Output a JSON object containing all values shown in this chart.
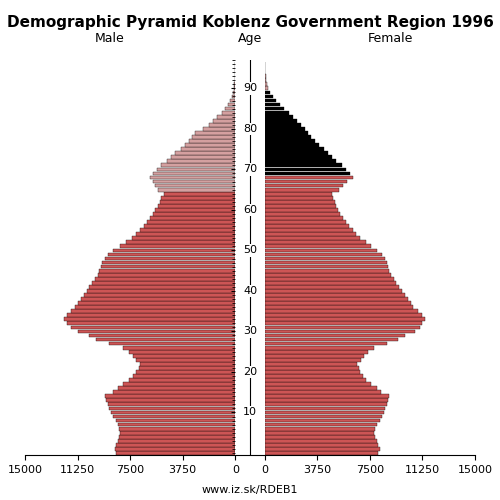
{
  "title": "Demographic Pyramid Koblenz Government Region 1996",
  "label_male": "Male",
  "label_female": "Female",
  "label_age": "Age",
  "source": "www.iz.sk/RDEB1",
  "xlim": 15000,
  "ages": [
    0,
    1,
    2,
    3,
    4,
    5,
    6,
    7,
    8,
    9,
    10,
    11,
    12,
    13,
    14,
    15,
    16,
    17,
    18,
    19,
    20,
    21,
    22,
    23,
    24,
    25,
    26,
    27,
    28,
    29,
    30,
    31,
    32,
    33,
    34,
    35,
    36,
    37,
    38,
    39,
    40,
    41,
    42,
    43,
    44,
    45,
    46,
    47,
    48,
    49,
    50,
    51,
    52,
    53,
    54,
    55,
    56,
    57,
    58,
    59,
    60,
    61,
    62,
    63,
    64,
    65,
    66,
    67,
    68,
    69,
    70,
    71,
    72,
    73,
    74,
    75,
    76,
    77,
    78,
    79,
    80,
    81,
    82,
    83,
    84,
    85,
    86,
    87,
    88,
    89,
    90,
    91,
    92,
    93,
    94,
    95,
    96
  ],
  "male": [
    8500,
    8600,
    8500,
    8400,
    8300,
    8200,
    8300,
    8400,
    8500,
    8700,
    8900,
    9000,
    9100,
    9200,
    9300,
    8700,
    8400,
    8000,
    7600,
    7300,
    7100,
    6900,
    6800,
    7100,
    7300,
    7600,
    8000,
    9000,
    9900,
    10400,
    11200,
    11700,
    12000,
    12200,
    12000,
    11700,
    11400,
    11200,
    11000,
    10800,
    10600,
    10400,
    10200,
    10000,
    9800,
    9700,
    9600,
    9500,
    9300,
    9100,
    8700,
    8200,
    7800,
    7400,
    7100,
    6800,
    6500,
    6300,
    6100,
    5900,
    5700,
    5500,
    5400,
    5300,
    5100,
    5500,
    5700,
    5900,
    6100,
    5900,
    5600,
    5300,
    4900,
    4600,
    4300,
    3900,
    3600,
    3300,
    3100,
    2900,
    2300,
    1900,
    1600,
    1300,
    950,
    700,
    530,
    370,
    260,
    160,
    110,
    75,
    52,
    32,
    22,
    12,
    5
  ],
  "female": [
    8100,
    8200,
    8100,
    8000,
    7900,
    7800,
    7900,
    8000,
    8200,
    8400,
    8500,
    8600,
    8700,
    8800,
    8900,
    8300,
    8000,
    7600,
    7200,
    7000,
    6800,
    6700,
    6600,
    6900,
    7100,
    7400,
    7800,
    8700,
    9500,
    10000,
    10700,
    11100,
    11200,
    11400,
    11200,
    10900,
    10600,
    10400,
    10200,
    10000,
    9800,
    9600,
    9400,
    9200,
    9000,
    8900,
    8800,
    8700,
    8600,
    8400,
    8000,
    7600,
    7200,
    6800,
    6500,
    6300,
    6000,
    5800,
    5600,
    5400,
    5200,
    5100,
    5000,
    4900,
    4800,
    5300,
    5600,
    5900,
    6300,
    6100,
    5800,
    5500,
    5100,
    4800,
    4500,
    4200,
    3900,
    3600,
    3300,
    3100,
    2900,
    2600,
    2300,
    2000,
    1700,
    1400,
    1100,
    800,
    600,
    380,
    240,
    150,
    95,
    58,
    32,
    17,
    7
  ],
  "male_color_young": "#cd5555",
  "male_color_old": "#d4a0a0",
  "female_color_young": "#cd5555",
  "female_color_black": "#000000",
  "female_color_old": "#d4a0a0",
  "bar_height": 0.92,
  "age_color_cutoff_male": 65,
  "age_black_female_start": 69,
  "age_black_female_end": 89,
  "ytick_major": [
    10,
    20,
    30,
    40,
    50,
    60,
    70,
    80,
    90
  ],
  "xtick_vals": [
    15000,
    11250,
    7500,
    3750,
    0
  ],
  "background_color": "#ffffff",
  "title_fontsize": 11,
  "label_fontsize": 9,
  "tick_fontsize": 8
}
